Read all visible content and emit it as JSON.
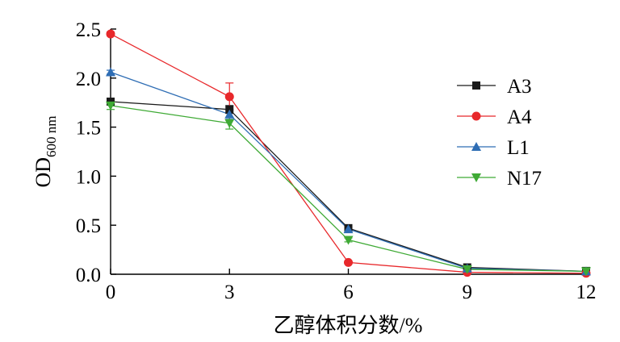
{
  "chart_data": {
    "type": "line",
    "title": "",
    "xlabel": "乙醇体积分数/%",
    "ylabel": "OD",
    "ylabel_sub": "600 nm",
    "x": [
      0,
      3,
      6,
      9,
      12
    ],
    "x_ticks": [
      "0",
      "3",
      "6",
      "9",
      "12"
    ],
    "y_ticks": [
      "0.0",
      "0.5",
      "1.0",
      "1.5",
      "2.0",
      "2.5"
    ],
    "xlim": [
      0,
      12
    ],
    "ylim": [
      0,
      2.5
    ],
    "grid": false,
    "legend_position": "right",
    "series": [
      {
        "name": "A3",
        "color": "#1a1a1a",
        "marker": "square",
        "values": [
          1.76,
          1.68,
          0.47,
          0.07,
          0.03
        ],
        "errors": [
          0.02,
          0.04,
          0.02,
          0.01,
          0.04
        ]
      },
      {
        "name": "A4",
        "color": "#e8282b",
        "marker": "circle",
        "values": [
          2.45,
          1.81,
          0.12,
          0.02,
          0.01
        ],
        "errors": [
          0.02,
          0.14,
          0.01,
          0.01,
          0.01
        ]
      },
      {
        "name": "L1",
        "color": "#2e6db4",
        "marker": "triangle-up",
        "values": [
          2.06,
          1.63,
          0.46,
          0.06,
          0.03
        ],
        "errors": [
          0.02,
          0.05,
          0.02,
          0.01,
          0.01
        ]
      },
      {
        "name": "N17",
        "color": "#3faa35",
        "marker": "triangle-down",
        "values": [
          1.72,
          1.54,
          0.35,
          0.05,
          0.03
        ],
        "errors": [
          0.04,
          0.06,
          0.02,
          0.01,
          0.01
        ]
      }
    ]
  }
}
